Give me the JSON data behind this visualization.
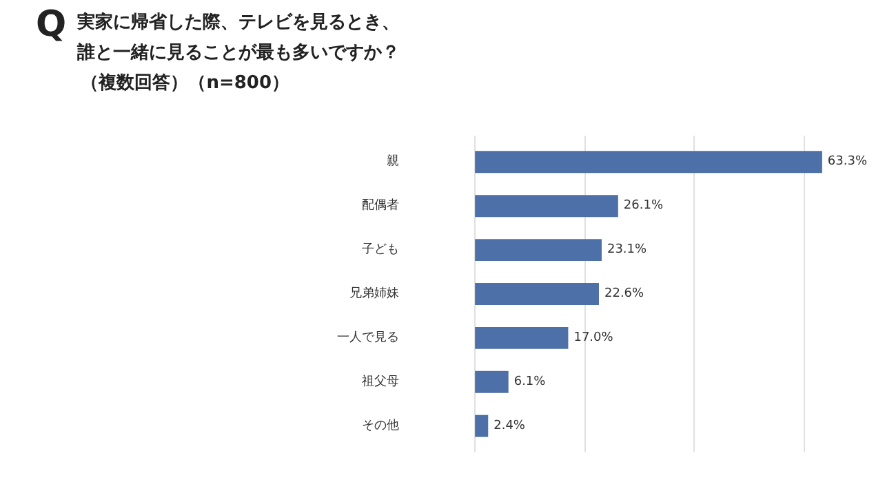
{
  "chart_data": {
    "type": "bar",
    "orientation": "horizontal",
    "title": "実家に帰省した際、テレビを見るとき、誰と一緒に見ることが最も多いですか？",
    "subtitle": "（複数回答）（n=800）",
    "annotations": [
      "Q"
    ],
    "categories": [
      "親",
      "配偶者",
      "子ども",
      "兄弟姉妹",
      "一人で見る",
      "祖父母",
      "その他"
    ],
    "values": [
      63.3,
      26.1,
      23.1,
      22.6,
      17.0,
      6.1,
      2.4
    ],
    "value_labels": [
      "63.3%",
      "26.1%",
      "23.1%",
      "22.6%",
      "17.0%",
      "6.1%",
      "2.4%"
    ],
    "color": "#4e70a8",
    "grid": "x",
    "tick_labels": "y"
  }
}
